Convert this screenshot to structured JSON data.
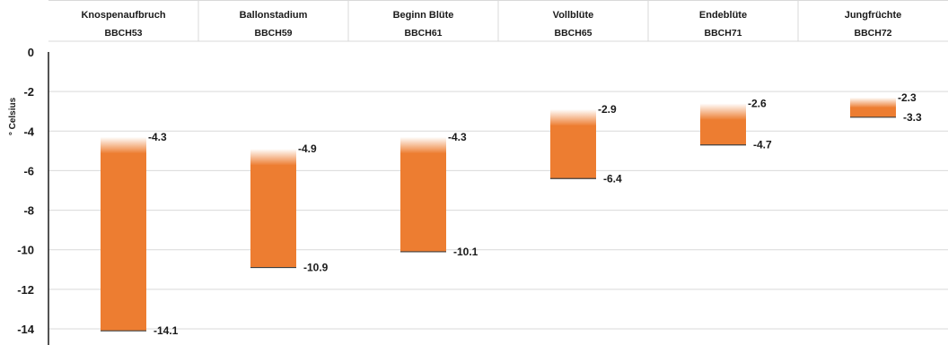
{
  "chart_data": {
    "type": "bar",
    "subtype": "floating-range",
    "ylabel": "° Celsius",
    "ylim": [
      -14,
      0
    ],
    "yticks": [
      0,
      -2,
      -4,
      -6,
      -8,
      -10,
      -12,
      -14
    ],
    "tick_labels": [
      "0",
      "-2",
      "-4",
      "-6",
      "-8",
      "-10",
      "-12",
      "-14"
    ],
    "grid": true,
    "bar_color": "#ED7D31",
    "stages": [
      {
        "name": "Knospenaufbruch",
        "code": "BBCH53",
        "top": -4.3,
        "bottom": -14.1,
        "top_label": "-4.3",
        "bottom_label": "-14.1"
      },
      {
        "name": "Ballonstadium",
        "code": "BBCH59",
        "top": -4.9,
        "bottom": -10.9,
        "top_label": "-4.9",
        "bottom_label": "-10.9"
      },
      {
        "name": "Beginn Blüte",
        "code": "BBCH61",
        "top": -4.3,
        "bottom": -10.1,
        "top_label": "-4.3",
        "bottom_label": "-10.1"
      },
      {
        "name": "Vollblüte",
        "code": "BBCH65",
        "top": -2.9,
        "bottom": -6.4,
        "top_label": "-2.9",
        "bottom_label": "-6.4"
      },
      {
        "name": "Endeblüte",
        "code": "BBCH71",
        "top": -2.6,
        "bottom": -4.7,
        "top_label": "-2.6",
        "bottom_label": "-4.7"
      },
      {
        "name": "Jungfrüchte",
        "code": "BBCH72",
        "top": -2.3,
        "bottom": -3.3,
        "top_label": "-2.3",
        "bottom_label": "-3.3"
      }
    ]
  }
}
